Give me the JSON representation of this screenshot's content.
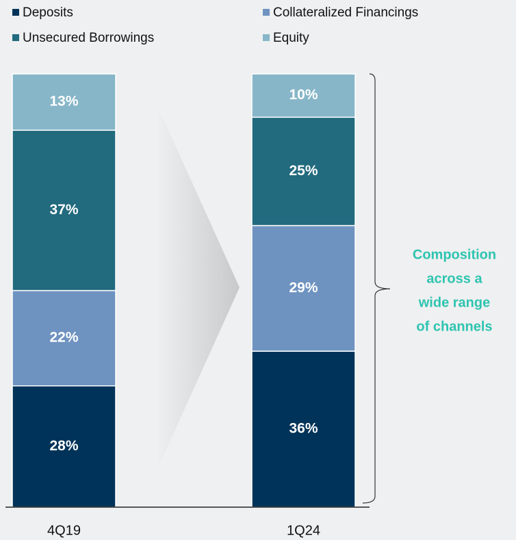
{
  "chart_data": {
    "type": "bar",
    "stacked": true,
    "categories": [
      "4Q19",
      "1Q24"
    ],
    "series": [
      {
        "name": "Deposits",
        "color": "#003359",
        "values": [
          28,
          36
        ],
        "value_labels": [
          "28%",
          "36%"
        ]
      },
      {
        "name": "Collateralized Financings",
        "color": "#6f93c0",
        "values": [
          22,
          29
        ],
        "value_labels": [
          "22%",
          "29%"
        ]
      },
      {
        "name": "Unsecured Borrowings",
        "color": "#226a7e",
        "values": [
          37,
          25
        ],
        "value_labels": [
          "37%",
          "25%"
        ]
      },
      {
        "name": "Equity",
        "color": "#87b6c8",
        "values": [
          13,
          10
        ],
        "value_labels": [
          "13%",
          "10%"
        ]
      }
    ],
    "ylim": [
      0,
      100
    ],
    "annotation": [
      "Composition",
      "across a",
      "wide range",
      "of channels"
    ]
  }
}
